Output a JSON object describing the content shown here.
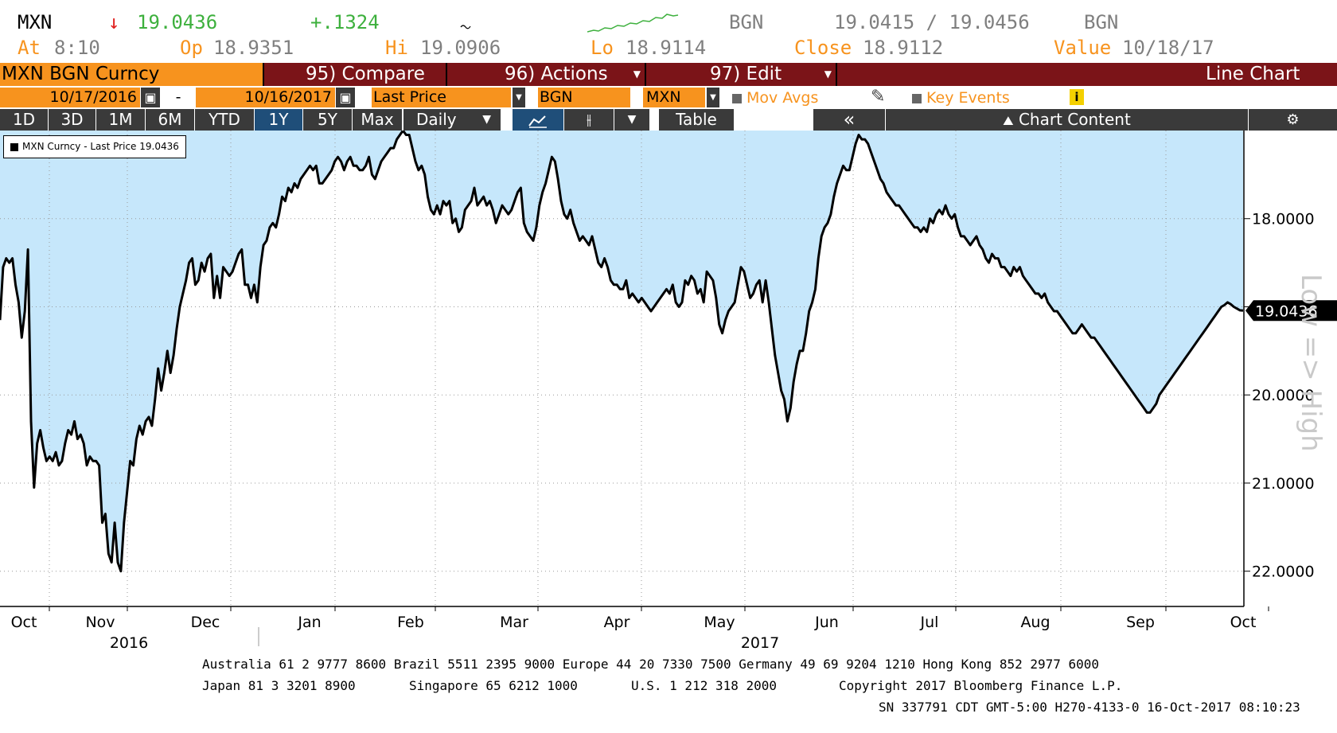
{
  "quote": {
    "ticker": "MXN",
    "arrow": "↓",
    "price": "19.0436",
    "change": "+.1324",
    "source1": "BGN",
    "bid_ask": "19.0415 / 19.0456",
    "source2": "BGN",
    "at_label": "At",
    "at_value": "8:10",
    "op_label": "Op",
    "op_value": "18.9351",
    "hi_label": "Hi",
    "hi_value": "19.0906",
    "lo_label": "Lo",
    "lo_value": "18.9114",
    "close_label": "Close",
    "close_value": "18.9112",
    "value_label": "Value",
    "value_value": "10/18/17"
  },
  "toolbar": {
    "security": "MXN BGN Curncy",
    "compare": "95) Compare",
    "actions": "96) Actions",
    "edit": "97) Edit",
    "chart_type": "Line Chart",
    "start_date": "10/17/2016",
    "dash": "-",
    "end_date": "10/16/2017",
    "field": "Last Price",
    "source": "BGN",
    "currency": "MXN",
    "mov_avgs": "Mov Avgs",
    "key_events": "Key Events",
    "info": "i",
    "periods": [
      "1D",
      "3D",
      "1M",
      "6M",
      "YTD",
      "1Y",
      "5Y",
      "Max"
    ],
    "selected_period": "1Y",
    "frequency": "Daily",
    "table": "Table",
    "collapse": "«",
    "chart_content": "Chart Content"
  },
  "colors": {
    "orange": "#f7931e",
    "maroon": "#7b1418",
    "area": "#c6e7fb",
    "selected": "#1f4e79"
  },
  "legend": "MXN Curncy - Last Price 19.0436",
  "chart_data": {
    "type": "area",
    "series": [
      {
        "name": "MXN Curncy - Last Price 19.0436",
        "values": [
          19.15,
          18.55,
          18.45,
          18.5,
          18.45,
          18.75,
          18.95,
          19.35,
          19.05,
          18.35,
          20.3,
          21.05,
          20.55,
          20.4,
          20.6,
          20.75,
          20.7,
          20.75,
          20.65,
          20.8,
          20.75,
          20.55,
          20.4,
          20.45,
          20.3,
          20.5,
          20.45,
          20.55,
          20.8,
          20.7,
          20.75,
          20.75,
          20.8,
          21.45,
          21.35,
          21.8,
          21.9,
          21.45,
          21.9,
          22.0,
          21.45,
          21.1,
          20.75,
          20.8,
          20.5,
          20.35,
          20.45,
          20.3,
          20.25,
          20.35,
          20.05,
          19.7,
          19.95,
          19.75,
          19.5,
          19.75,
          19.55,
          19.25,
          19.0,
          18.85,
          18.7,
          18.5,
          18.45,
          18.75,
          18.7,
          18.5,
          18.6,
          18.45,
          18.4,
          18.9,
          18.65,
          18.9,
          18.55,
          18.6,
          18.65,
          18.6,
          18.5,
          18.4,
          18.35,
          18.75,
          18.75,
          18.9,
          18.75,
          18.95,
          18.55,
          18.3,
          18.25,
          18.1,
          18.05,
          18.1,
          17.95,
          17.75,
          17.8,
          17.65,
          17.7,
          17.6,
          17.65,
          17.55,
          17.5,
          17.45,
          17.4,
          17.45,
          17.4,
          17.6,
          17.6,
          17.55,
          17.5,
          17.45,
          17.35,
          17.3,
          17.35,
          17.45,
          17.35,
          17.3,
          17.4,
          17.4,
          17.45,
          17.45,
          17.4,
          17.3,
          17.5,
          17.55,
          17.45,
          17.35,
          17.3,
          17.25,
          17.2,
          17.2,
          17.1,
          17.05,
          17.0,
          17.05,
          17.05,
          17.2,
          17.35,
          17.45,
          17.4,
          17.5,
          17.75,
          17.9,
          17.95,
          17.85,
          17.95,
          17.8,
          17.85,
          17.8,
          18.05,
          18.0,
          18.15,
          18.1,
          17.9,
          17.85,
          17.8,
          17.65,
          17.85,
          17.8,
          17.75,
          17.85,
          17.8,
          17.9,
          18.05,
          17.95,
          17.85,
          17.9,
          17.95,
          17.9,
          17.8,
          17.7,
          17.65,
          18.05,
          18.15,
          18.2,
          18.25,
          18.1,
          17.85,
          17.7,
          17.6,
          17.45,
          17.3,
          17.35,
          17.55,
          17.8,
          17.95,
          18.0,
          17.9,
          18.05,
          18.15,
          18.25,
          18.2,
          18.25,
          18.3,
          18.2,
          18.35,
          18.5,
          18.55,
          18.45,
          18.55,
          18.7,
          18.75,
          18.75,
          18.8,
          18.8,
          18.7,
          18.9,
          18.85,
          18.9,
          18.95,
          18.9,
          18.95,
          19.0,
          19.05,
          19.0,
          18.95,
          18.9,
          18.85,
          18.8,
          18.85,
          18.75,
          18.95,
          19.0,
          18.95,
          18.7,
          18.75,
          18.65,
          18.7,
          18.85,
          18.8,
          18.95,
          18.6,
          18.65,
          18.7,
          18.9,
          19.2,
          19.3,
          19.15,
          19.05,
          19.0,
          18.95,
          18.75,
          18.55,
          18.6,
          18.75,
          18.9,
          18.85,
          18.75,
          18.7,
          18.95,
          18.7,
          18.95,
          19.25,
          19.55,
          19.75,
          19.95,
          20.05,
          20.3,
          20.15,
          19.85,
          19.65,
          19.5,
          19.5,
          19.3,
          19.05,
          18.95,
          18.8,
          18.45,
          18.2,
          18.1,
          18.05,
          17.95,
          17.75,
          17.6,
          17.5,
          17.4,
          17.45,
          17.45,
          17.3,
          17.15,
          17.05,
          17.1,
          17.1,
          17.15,
          17.25,
          17.35,
          17.45,
          17.55,
          17.6,
          17.7,
          17.75,
          17.8,
          17.85,
          17.85,
          17.9,
          17.95,
          18.0,
          18.05,
          18.1,
          18.1,
          18.15,
          18.1,
          18.15,
          18.0,
          18.05,
          17.95,
          17.9,
          17.95,
          17.85,
          17.95,
          18.0,
          17.95,
          18.1,
          18.2,
          18.2,
          18.25,
          18.3,
          18.25,
          18.2,
          18.3,
          18.35,
          18.45,
          18.5,
          18.4,
          18.45,
          18.45,
          18.55,
          18.55,
          18.6,
          18.65,
          18.55,
          18.6,
          18.55,
          18.65,
          18.7,
          18.75,
          18.8,
          18.85,
          18.85,
          18.9,
          18.85,
          18.95,
          19.0,
          19.05,
          19.05,
          19.1,
          19.15,
          19.2,
          19.25,
          19.3,
          19.3,
          19.25,
          19.2,
          19.25,
          19.3,
          19.35,
          19.35,
          19.4,
          19.45,
          19.5,
          19.55,
          19.6,
          19.65,
          19.7,
          19.75,
          19.8,
          19.85,
          19.9,
          19.95,
          20.0,
          20.05,
          20.1,
          20.15,
          20.2,
          20.2,
          20.15,
          20.1,
          20.0,
          19.95,
          19.9,
          19.85,
          19.8,
          19.75,
          19.7,
          19.65,
          19.6,
          19.55,
          19.5,
          19.45,
          19.4,
          19.35,
          19.3,
          19.25,
          19.2,
          19.15,
          19.1,
          19.05,
          19.0,
          18.98,
          18.95,
          18.97,
          19.0,
          19.02,
          19.04,
          19.0436
        ]
      }
    ],
    "x_labels": [
      "Oct",
      "Nov",
      "Dec",
      "Jan",
      "Feb",
      "Mar",
      "Apr",
      "May",
      "Jun",
      "Jul",
      "Aug",
      "Sep",
      "Oct"
    ],
    "year_labels": [
      "2016",
      "2017"
    ],
    "y_ticks": [
      "18.0000",
      "19.0000",
      "20.0000",
      "21.0000",
      "22.0000"
    ],
    "ylim": [
      17.0,
      22.4
    ],
    "y_inverted": true,
    "last_value": "19.0436",
    "side_label": "Low => High",
    "grid": true
  },
  "footer": {
    "line1": "Australia 61 2 9777 8600 Brazil 5511 2395 9000 Europe 44 20 7330 7500 Germany 49 69 9204 1210 Hong Kong 852 2977 6000",
    "line2_a": "Japan 81 3 3201 8900",
    "line2_b": "Singapore 65 6212 1000",
    "line2_c": "U.S. 1 212 318 2000",
    "line2_d": "Copyright 2017 Bloomberg Finance L.P.",
    "line3": "SN 337791 CDT  GMT-5:00 H270-4133-0 16-Oct-2017 08:10:23"
  }
}
